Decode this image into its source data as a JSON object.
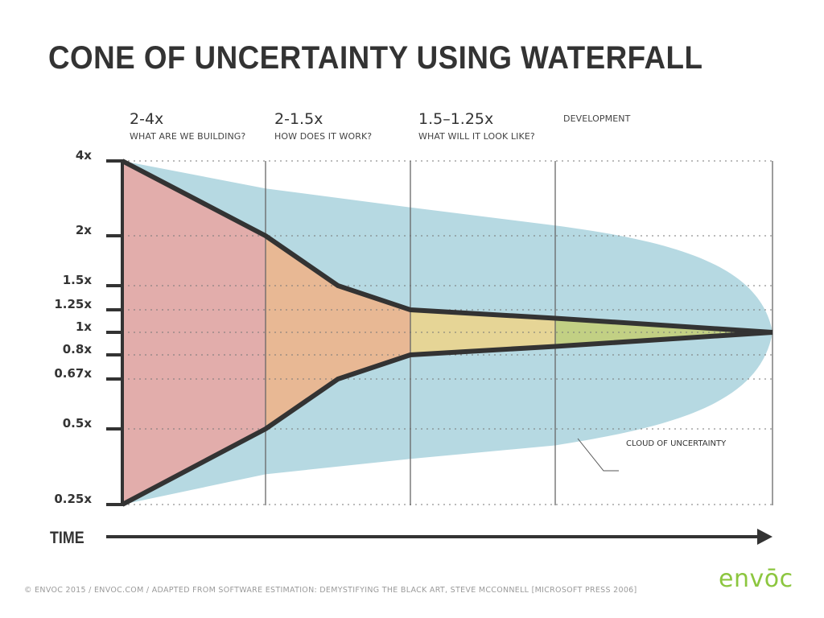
{
  "chart_data": {
    "type": "area",
    "title": "CONE OF UNCERTAINTY USING WATERFALL",
    "xlabel": "TIME",
    "ylabel": "",
    "y_ticks": [
      "4x",
      "2x",
      "1.5x",
      "1.25x",
      "1x",
      "0.8x",
      "0.67x",
      "0.5x",
      "0.25x"
    ],
    "y_tick_values": [
      4,
      2,
      1.5,
      1.25,
      1,
      0.8,
      0.67,
      0.5,
      0.25
    ],
    "phases": [
      {
        "range": "2-4x",
        "label": "WHAT ARE WE BUILDING?"
      },
      {
        "range": "2-1.5x",
        "label": "HOW DOES IT WORK?"
      },
      {
        "range": "1.5–1.25x",
        "label": "WHAT WILL IT LOOK LIKE?"
      },
      {
        "range": "",
        "label": "DEVELOPMENT"
      }
    ],
    "x_milestones": [
      0,
      1,
      1.5,
      2,
      3,
      4.5
    ],
    "series": [
      {
        "name": "cone-upper",
        "values": [
          4,
          2,
          1.5,
          1.25,
          1.15,
          1
        ]
      },
      {
        "name": "cone-lower",
        "values": [
          0.25,
          0.5,
          0.67,
          0.8,
          0.87,
          1
        ]
      },
      {
        "name": "cloud-upper",
        "x": [
          0,
          1,
          2,
          3,
          4.5
        ],
        "values": [
          4,
          3.1,
          2.6,
          2.2,
          1
        ]
      },
      {
        "name": "cloud-lower",
        "x": [
          0,
          1,
          2,
          3,
          4.5
        ],
        "values": [
          0.25,
          0.33,
          0.38,
          0.43,
          1
        ]
      }
    ],
    "annotation": "CLOUD OF UNCERTAINTY",
    "grid": true,
    "colors": {
      "phase1": "#e2adab",
      "phase2": "#e8b894",
      "phase3": "#e6d596",
      "phase4": "#c2d084",
      "cloud": "#b6d9e2",
      "line": "#333333"
    }
  },
  "footer": "© ENVOC 2015 / ENVOC.COM / ADAPTED FROM SOFTWARE ESTIMATION: DEMYSTIFYING THE BLACK ART, STEVE MCCONNELL [MICROSOFT PRESS 2006]",
  "logo": "envōc"
}
